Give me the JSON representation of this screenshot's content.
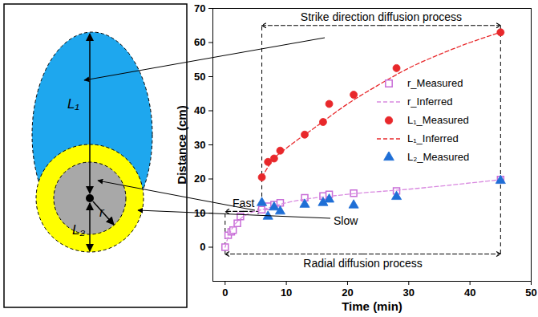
{
  "diagram": {
    "ellipse_label": "L₁",
    "ring_label": "L₂",
    "radius_label": "r"
  },
  "chart_data": {
    "type": "scatter",
    "x_label": "Time (min)",
    "y_label": "Distance (cm)",
    "xlim": [
      -2,
      50
    ],
    "xticks": [
      0,
      10,
      20,
      30,
      40,
      50
    ],
    "ylim": [
      -10,
      70
    ],
    "yticks": [
      0,
      10,
      20,
      30,
      40,
      50,
      60,
      70
    ],
    "grid": false,
    "legend": "right",
    "series": [
      {
        "name": "r_Measured",
        "type": "scatter",
        "marker": "square-open",
        "color": "#c86dd7",
        "x": [
          0,
          0.5,
          1,
          1.3,
          2,
          2.5,
          6,
          7,
          8,
          9,
          13,
          16,
          17,
          21,
          28,
          45
        ],
        "values": [
          0,
          3.5,
          4.5,
          5,
          7,
          9,
          11,
          12,
          12.5,
          13,
          14.5,
          15,
          15.5,
          15.8,
          16.5,
          19.8
        ]
      },
      {
        "name": "r_Inferred",
        "type": "line",
        "line_style": "dashed",
        "color": "#d98ae0",
        "x": [
          0,
          0.5,
          1,
          2,
          3,
          4,
          6,
          10,
          20,
          30,
          45
        ],
        "values": [
          0,
          3,
          5,
          7.5,
          9,
          10,
          11,
          13,
          15.5,
          17,
          19.8
        ]
      },
      {
        "name": "L₁_Measured",
        "type": "scatter",
        "marker": "circle",
        "color": "#e8282b",
        "x": [
          6,
          7,
          8,
          9,
          13,
          16,
          17,
          21,
          28,
          45
        ],
        "values": [
          20.5,
          25,
          26,
          28.3,
          33,
          36.7,
          42,
          44.7,
          52.5,
          63
        ]
      },
      {
        "name": "L₁_Inferred",
        "type": "line",
        "line_style": "dashed",
        "color": "#e8282b",
        "x": [
          6,
          8,
          10,
          15,
          20,
          25,
          30,
          35,
          40,
          45
        ],
        "values": [
          20.5,
          26,
          29,
          35.5,
          42,
          47.5,
          52.5,
          56.5,
          60,
          63
        ]
      },
      {
        "name": "L₂_Measured",
        "type": "scatter",
        "marker": "triangle",
        "color": "#1f6fd6",
        "x": [
          6,
          7,
          8,
          9,
          13,
          16,
          17,
          21,
          28,
          45
        ],
        "values": [
          13,
          9,
          11.7,
          10.5,
          12.5,
          13,
          14,
          12.3,
          14.8,
          19.5
        ]
      }
    ],
    "phase_boundaries": [
      0,
      6,
      45
    ],
    "annotations": [
      {
        "text": "Strike direction diffusion process",
        "x": [
          6,
          45
        ],
        "y": 65
      },
      {
        "text": "Fast",
        "x": [
          0,
          6
        ],
        "y": 10.5
      },
      {
        "text": "Radial diffusion process",
        "x": [
          0,
          45
        ],
        "y": -2
      },
      {
        "text": "Slow",
        "x": 19.7,
        "y": 7.6
      }
    ]
  }
}
